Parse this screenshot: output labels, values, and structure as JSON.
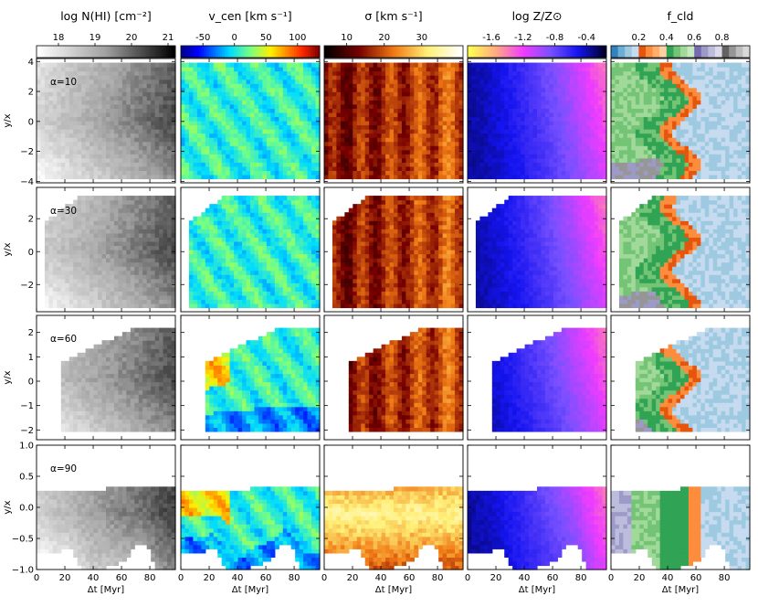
{
  "chart_data": {
    "type": "heatmap",
    "title": "",
    "layout": "4 rows x 5 columns",
    "column_headers": [
      "log N(HI) [cm⁻²]",
      "v_cen [km s⁻¹]",
      "σ [km s⁻¹]",
      "log Z/Z⊙",
      "f_cld"
    ],
    "colorbars": [
      {
        "label": "log N(HI) [cm⁻²]",
        "colormap": "Greys",
        "range": [
          17.4,
          21.2
        ],
        "ticks": [
          18,
          19,
          20,
          21
        ]
      },
      {
        "label": "v_cen [km s⁻¹]",
        "colormap": "jet",
        "range": [
          -85,
          135
        ],
        "ticks": [
          -50,
          0,
          50,
          100
        ]
      },
      {
        "label": "σ [km s⁻¹]",
        "colormap": "afmhot",
        "range": [
          4,
          41
        ],
        "ticks": [
          10,
          20,
          30
        ]
      },
      {
        "label": "log Z/Z⊙",
        "colormap": "gnuplot2_r",
        "range": [
          -1.9,
          -0.15
        ],
        "ticks": [
          -1.6,
          -1.2,
          -0.8,
          -0.4
        ]
      },
      {
        "label": "f_cld",
        "colormap": "tab20c",
        "range": [
          0,
          1
        ],
        "ticks": [
          0.2,
          0.4,
          0.6,
          0.8
        ]
      }
    ],
    "xlabel": "Δt [Myr]",
    "xlim": [
      0,
      98
    ],
    "xticks": [
      0,
      20,
      40,
      60,
      80
    ],
    "ylabel": "y/x",
    "rows": [
      {
        "alpha_label": "α=10",
        "ylim": [
          -4.1,
          4.2
        ],
        "yticks": [
          -4,
          -2,
          0,
          2,
          4
        ],
        "upper_edge_start": [
          0,
          4.0
        ],
        "upper_edge_end": [
          18,
          4.0
        ],
        "lower_edge": -3.75,
        "y_center": 0.0
      },
      {
        "alpha_label": "α=30",
        "ylim": [
          -3.65,
          3.9
        ],
        "yticks": [
          -2,
          0,
          2
        ],
        "upper_edge_start": [
          5,
          1.7
        ],
        "upper_edge_end": [
          32,
          3.5
        ],
        "lower_edge": -3.35,
        "y_center": 0.0
      },
      {
        "alpha_label": "α=60",
        "ylim": [
          -2.4,
          2.7
        ],
        "yticks": [
          -2,
          -1,
          0,
          1,
          2
        ],
        "upper_edge_start": [
          18,
          0.8
        ],
        "upper_edge_end": [
          70,
          2.2
        ],
        "lower_edge": -2.05,
        "y_center": 0.0
      },
      {
        "alpha_label": "α=90",
        "ylim": [
          -1.0,
          1.0
        ],
        "yticks": [
          -1.0,
          -0.5,
          0.0,
          0.5,
          1.0
        ],
        "upper_edge_start": [
          0,
          0.25
        ],
        "upper_edge_end": [
          98,
          0.35
        ],
        "lower_edge": -0.9,
        "y_center": -0.1
      }
    ]
  }
}
